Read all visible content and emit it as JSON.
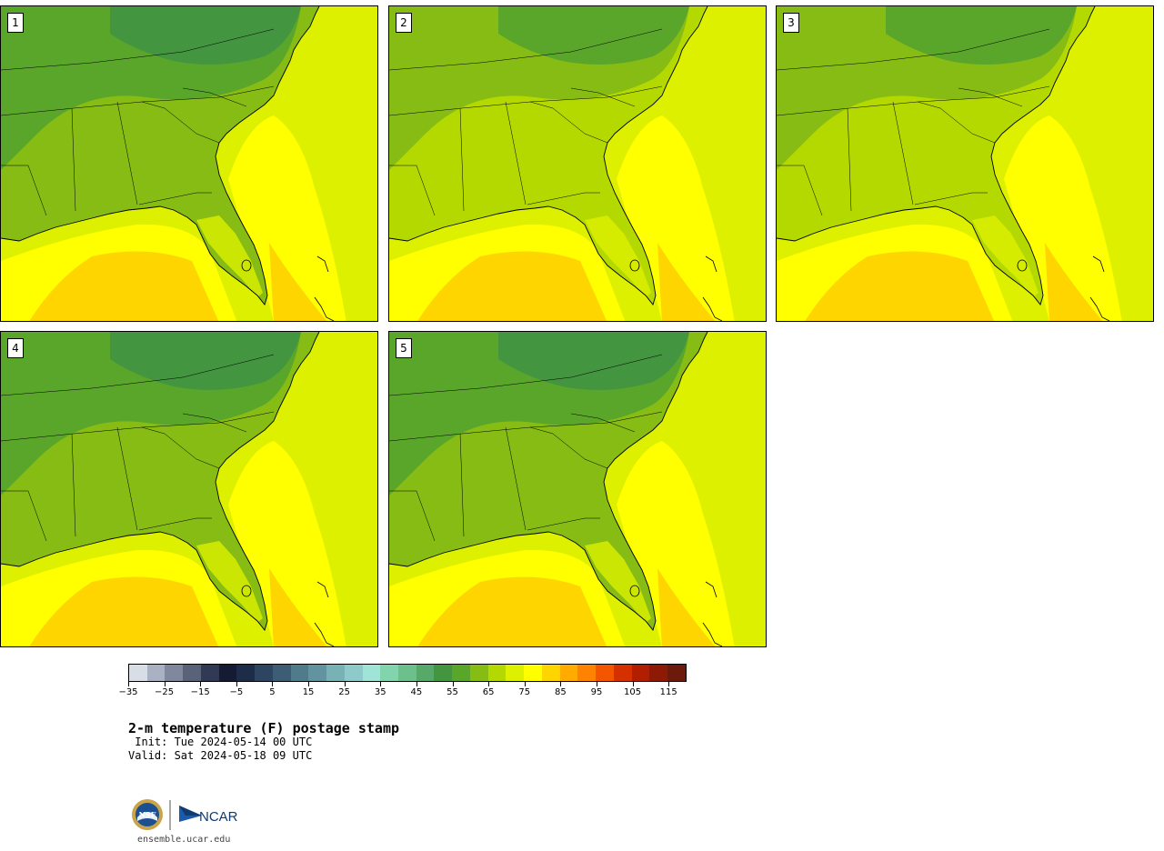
{
  "panels": [
    {
      "label": "1",
      "variant": 0
    },
    {
      "label": "2",
      "variant": 1
    },
    {
      "label": "3",
      "variant": 2
    },
    {
      "label": "4",
      "variant": 3
    },
    {
      "label": "5",
      "variant": 4
    }
  ],
  "colorbar": {
    "colors": [
      "#d8dde6",
      "#aab1c2",
      "#7f889c",
      "#586279",
      "#303a55",
      "#141b33",
      "#1d2d48",
      "#2d4560",
      "#3d5d75",
      "#507b8b",
      "#62949f",
      "#79b2b5",
      "#8dcac9",
      "#9fe4d6",
      "#82d4ac",
      "#6cc08c",
      "#57a96a",
      "#43953f",
      "#5aa62a",
      "#86bc13",
      "#b4d900",
      "#ddf000",
      "#ffff00",
      "#ffd500",
      "#ffab00",
      "#ff8300",
      "#f45600",
      "#d53000",
      "#b11f00",
      "#8e1a06",
      "#6b1a0c"
    ],
    "tick_labels": [
      "−35",
      "−25",
      "−15",
      "−5",
      "5",
      "15",
      "25",
      "35",
      "45",
      "55",
      "65",
      "75",
      "85",
      "95",
      "105",
      "115"
    ]
  },
  "title": "2-m temperature (F) postage stamp",
  "init": " Init: Tue 2024-05-14 00 UTC",
  "valid": "Valid: Sat 2024-05-18 09 UTC",
  "logo": {
    "nsf_text": "NSF",
    "ncar_text": "NCAR"
  },
  "website": "ensemble.ucar.edu"
}
